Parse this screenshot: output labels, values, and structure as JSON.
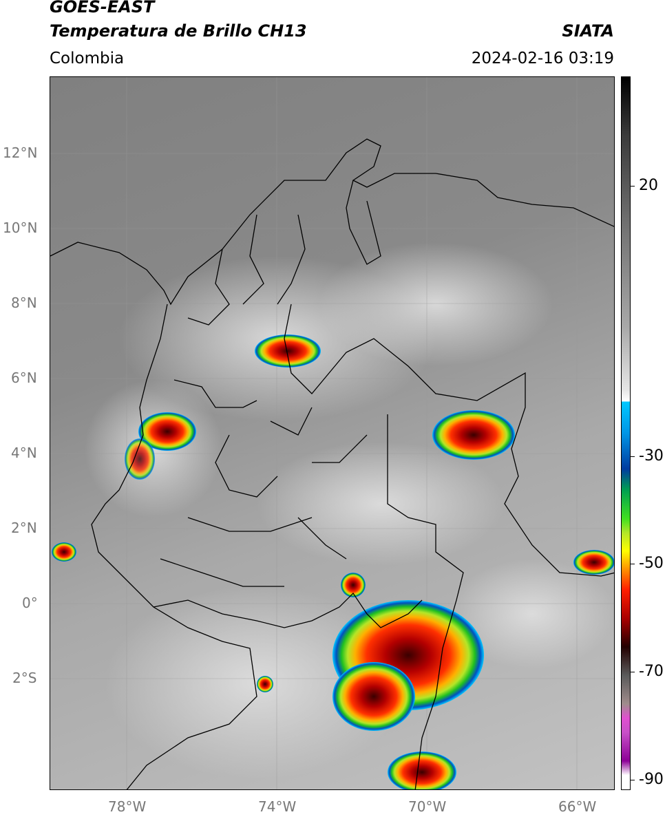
{
  "header": {
    "satellite": "GOES-EAST",
    "product": "Temperatura de Brillo CH13",
    "region": "Colombia",
    "agency": "SIATA",
    "datetime": "2024-02-16 03:19"
  },
  "map": {
    "lat_labels": [
      "12°N",
      "10°N",
      "8°N",
      "6°N",
      "4°N",
      "2°N",
      "0°",
      "2°S"
    ],
    "lon_labels": [
      "78°W",
      "74°W",
      "70°W",
      "66°W"
    ],
    "colors": {
      "cloud_tops_cold": "#ff1e00",
      "cloud_edge": "#00c8ff",
      "coast": "#000000"
    }
  },
  "colorbar": {
    "labels": [
      "20",
      "-30",
      "-50",
      "-70",
      "-90"
    ]
  }
}
